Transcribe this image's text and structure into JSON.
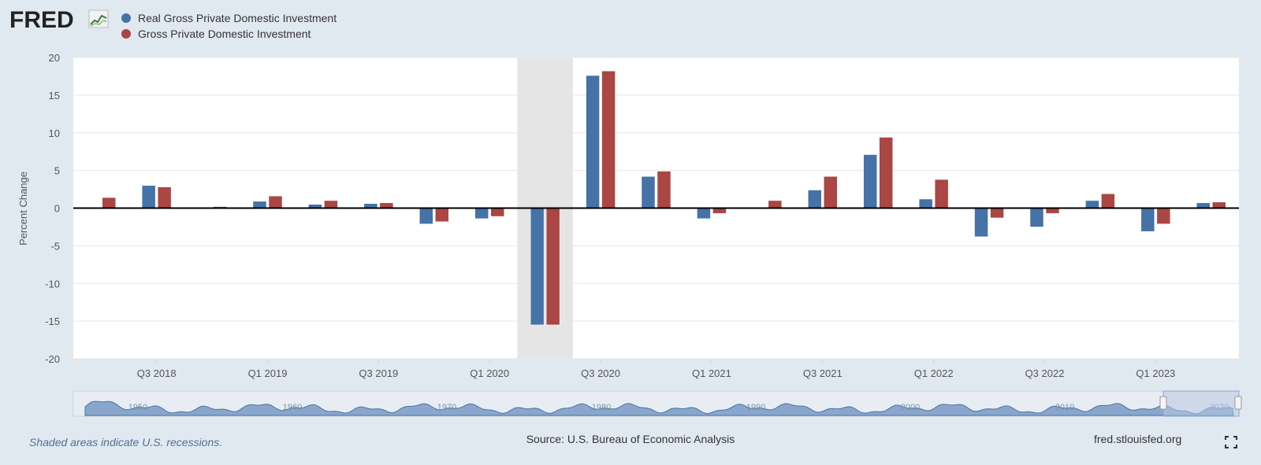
{
  "brand": {
    "logo_text": "FRED",
    "logo_icon": "fred-chart-icon"
  },
  "footer": {
    "note": "Shaded areas indicate U.S. recessions.",
    "source": "Source: U.S. Bureau of Economic Analysis",
    "site": "fred.stlouisfed.org",
    "fullscreen_icon": "fullscreen-icon"
  },
  "colors": {
    "background": "#e1e9f0",
    "plot": "#ffffff",
    "series_real": "#4572a7",
    "series_nominal": "#aa4643",
    "recession": "#e5e5e5",
    "navigator_fill": "#8ba6cc"
  },
  "chart_data": {
    "type": "bar",
    "ylabel": "Percent Change",
    "ylim": [
      -20,
      20
    ],
    "yticks": [
      20,
      15,
      10,
      5,
      0,
      -5,
      -10,
      -15,
      -20
    ],
    "grid": true,
    "legend_position": "top-left",
    "categories": [
      "Q2 2018",
      "Q3 2018",
      "Q4 2018",
      "Q1 2019",
      "Q2 2019",
      "Q3 2019",
      "Q4 2019",
      "Q1 2020",
      "Q2 2020",
      "Q3 2020",
      "Q4 2020",
      "Q1 2021",
      "Q2 2021",
      "Q3 2021",
      "Q4 2021",
      "Q1 2022",
      "Q2 2022",
      "Q3 2022",
      "Q4 2022",
      "Q1 2023",
      "Q2 2023"
    ],
    "xtick_labels": [
      "Q3 2018",
      "Q1 2019",
      "Q3 2019",
      "Q1 2020",
      "Q3 2020",
      "Q1 2021",
      "Q3 2021",
      "Q1 2022",
      "Q3 2022",
      "Q1 2023"
    ],
    "recession_band": [
      "Q2 2020",
      "Q2 2020"
    ],
    "series": [
      {
        "name": "Real Gross Private Domestic Investment",
        "values": [
          0.1,
          3.0,
          0.0,
          0.9,
          0.5,
          0.6,
          -2.1,
          -1.4,
          -15.5,
          17.6,
          4.2,
          -1.4,
          0.0,
          2.4,
          7.1,
          1.2,
          -3.8,
          -2.5,
          1.0,
          -3.1,
          0.7
        ]
      },
      {
        "name": "Gross Private Domestic Investment",
        "values": [
          1.4,
          2.8,
          0.2,
          1.6,
          1.0,
          0.7,
          -1.8,
          -1.1,
          -15.5,
          18.2,
          4.9,
          -0.7,
          1.0,
          4.2,
          9.4,
          3.8,
          -1.3,
          -0.7,
          1.9,
          -2.1,
          0.8
        ]
      }
    ],
    "navigator": {
      "tick_labels": [
        "1950",
        "1960",
        "1970",
        "1980",
        "1990",
        "2000",
        "2010",
        "2020"
      ]
    }
  }
}
